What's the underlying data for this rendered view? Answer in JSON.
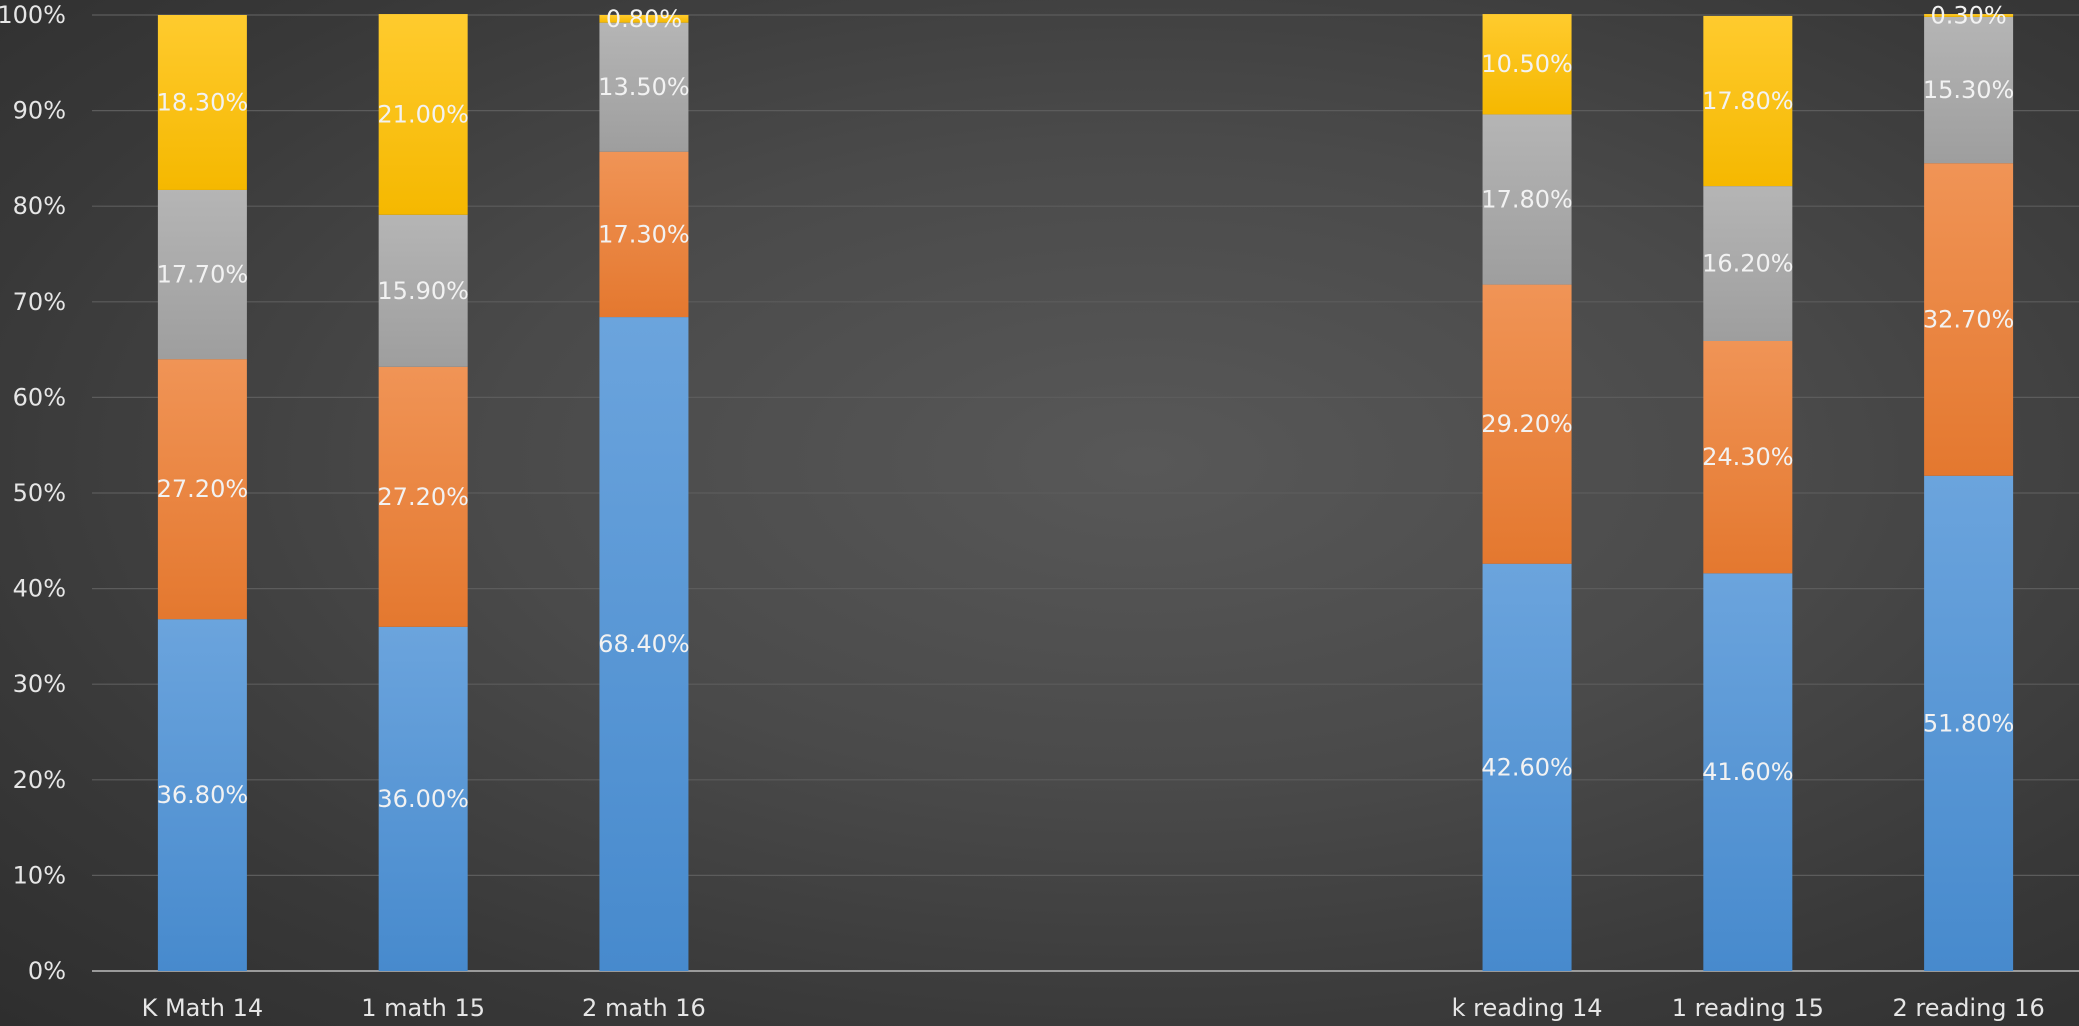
{
  "chart_data": {
    "type": "bar",
    "stacked": true,
    "percent": true,
    "title": "",
    "xlabel": "",
    "ylabel": "",
    "ylim": [
      0,
      100
    ],
    "yticks": [
      "0%",
      "10%",
      "20%",
      "30%",
      "40%",
      "50%",
      "60%",
      "70%",
      "80%",
      "90%",
      "100%"
    ],
    "grid": true,
    "legend": "none",
    "categories": [
      "K Math 14",
      "1 math 15",
      "2 math 16",
      "",
      "",
      "",
      "k reading 14",
      "1 reading 15",
      "2 reading 16"
    ],
    "series": [
      {
        "color": "#4a90d6",
        "values": [
          36.8,
          36.0,
          68.4,
          null,
          null,
          null,
          42.6,
          41.6,
          51.8
        ],
        "labels": [
          "36.80%",
          "36.00%",
          "68.40%",
          null,
          null,
          null,
          "42.60%",
          "41.60%",
          "51.80%"
        ]
      },
      {
        "color": "#ed7d31",
        "values": [
          27.2,
          27.2,
          17.3,
          null,
          null,
          null,
          29.2,
          24.3,
          32.7
        ],
        "labels": [
          "27.20%",
          "27.20%",
          "17.30%",
          null,
          null,
          null,
          "29.20%",
          "24.30%",
          "32.70%"
        ]
      },
      {
        "color": "#a5a5a5",
        "values": [
          17.7,
          15.9,
          13.5,
          null,
          null,
          null,
          17.8,
          16.2,
          15.3
        ],
        "labels": [
          "17.70%",
          "15.90%",
          "13.50%",
          null,
          null,
          null,
          "17.80%",
          "16.20%",
          "15.30%"
        ]
      },
      {
        "color": "#ffc000",
        "values": [
          18.3,
          21.0,
          0.8,
          null,
          null,
          null,
          10.5,
          17.8,
          0.3
        ],
        "labels": [
          "18.30%",
          "21.00%",
          "0.80%",
          null,
          null,
          null,
          "10.50%",
          "17.80%",
          "0.30%"
        ]
      }
    ]
  }
}
